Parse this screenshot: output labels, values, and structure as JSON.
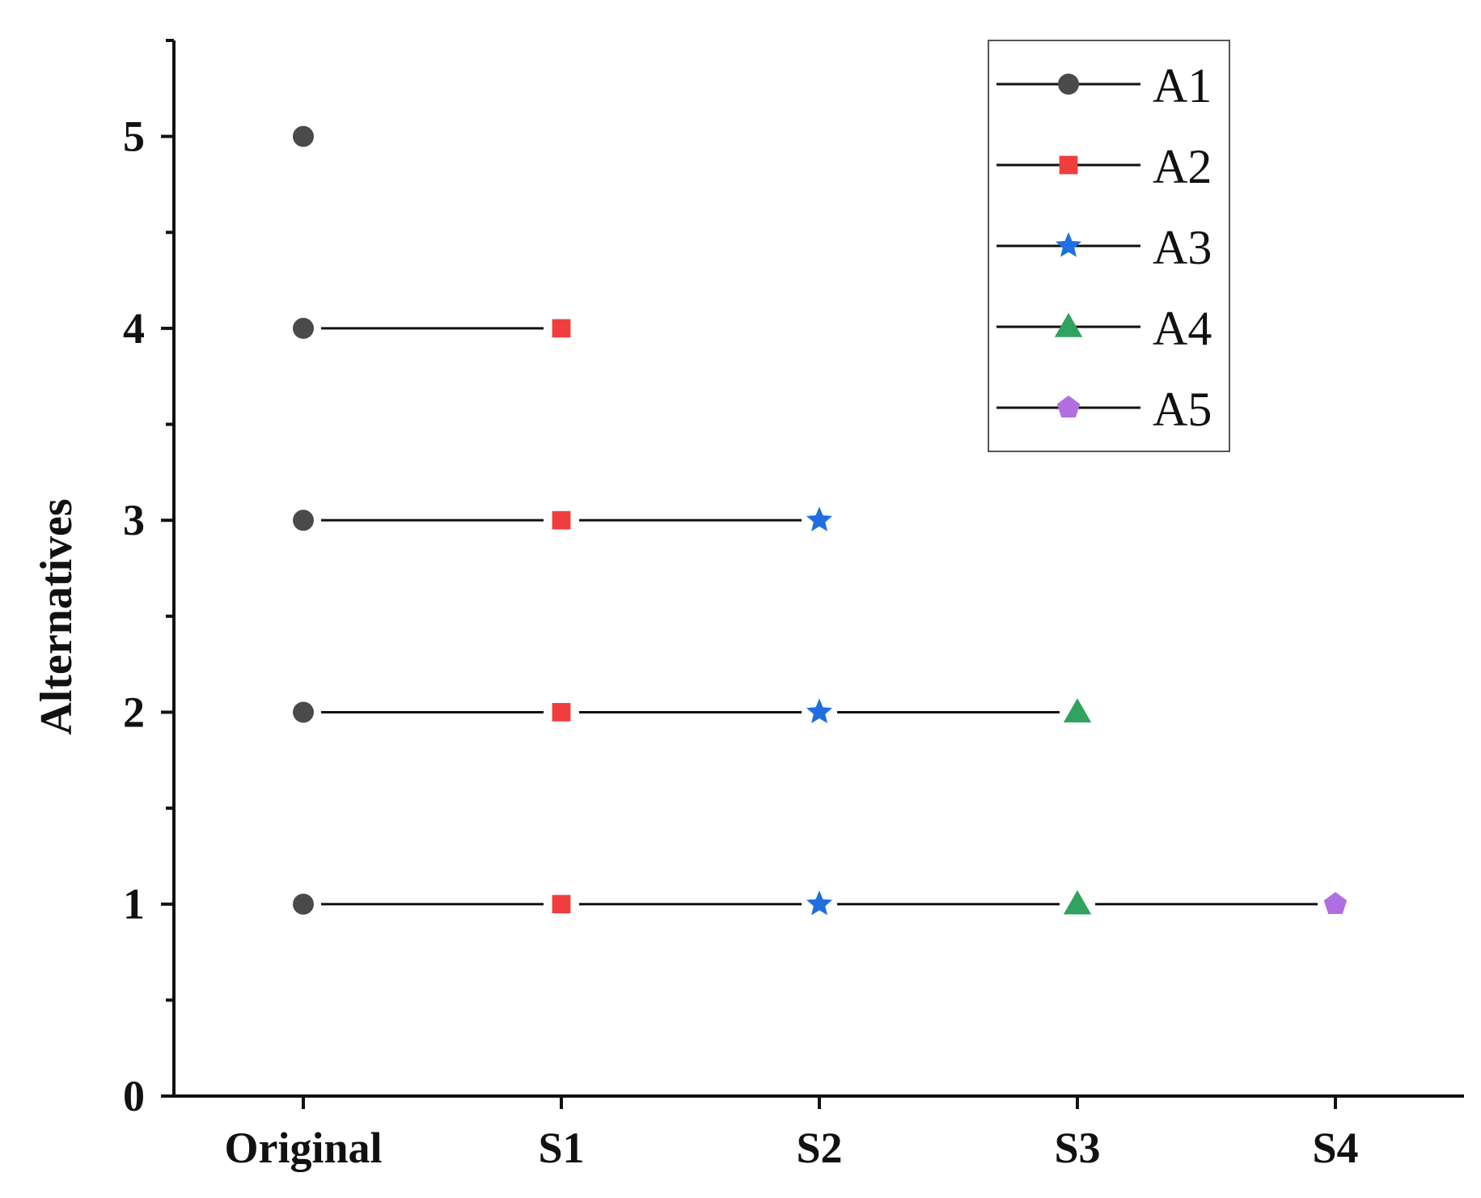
{
  "chart_data": {
    "type": "line",
    "categories": [
      "Original",
      "S1",
      "S2",
      "S3",
      "S4"
    ],
    "xlabel": "",
    "ylabel": "Alternatives",
    "ylim": [
      0,
      5.5
    ],
    "yticks": [
      "0",
      "1",
      "2",
      "3",
      "4",
      "5"
    ],
    "grid": false,
    "legend_position": "top-right",
    "series": [
      {
        "name": "A1",
        "marker": "circle",
        "color": "#4a4a4a",
        "values": [
          5,
          null,
          null,
          null,
          null
        ]
      },
      {
        "name": "A2",
        "marker": "square",
        "color": "#f03e3e",
        "values": [
          4,
          4,
          null,
          null,
          null
        ]
      },
      {
        "name": "A3",
        "marker": "star",
        "color": "#1f6fe0",
        "values": [
          3,
          3,
          3,
          null,
          null
        ]
      },
      {
        "name": "A4",
        "marker": "triangle",
        "color": "#2fa35f",
        "values": [
          2,
          2,
          2,
          2,
          null
        ]
      },
      {
        "name": "A5",
        "marker": "pentagon",
        "color": "#b06ee0",
        "values": [
          1,
          1,
          1,
          1,
          1
        ]
      }
    ],
    "ranking_lines": [
      {
        "markers": [
          "A1"
        ],
        "y": 5
      },
      {
        "markers": [
          "A1",
          "A2"
        ],
        "y": 4
      },
      {
        "markers": [
          "A1",
          "A2",
          "A3"
        ],
        "y": 3
      },
      {
        "markers": [
          "A1",
          "A2",
          "A3",
          "A4"
        ],
        "y": 2
      },
      {
        "markers": [
          "A1",
          "A2",
          "A3",
          "A4",
          "A5"
        ],
        "y": 1
      }
    ]
  }
}
